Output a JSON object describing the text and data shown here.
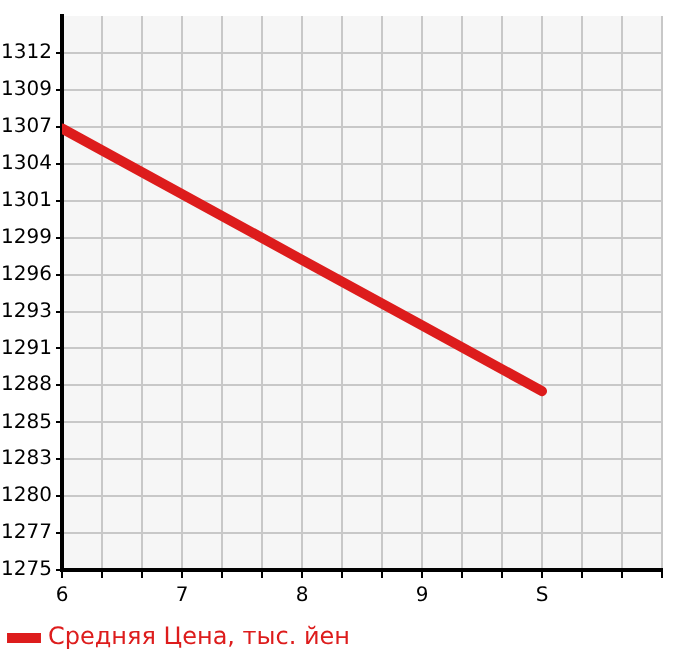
{
  "chart_data": {
    "type": "line",
    "x": [
      6,
      7,
      8,
      9,
      10
    ],
    "series": [
      {
        "name": "Средняя Цена, тыс. йен",
        "color": "#dd1c1c",
        "values": [
          1306.4,
          1301.7,
          1297.0,
          1292.3,
          1287.6
        ]
      }
    ],
    "xlim": [
      6,
      11
    ],
    "xticks": [
      6,
      {
        "value": 6.33,
        "label": null
      },
      {
        "value": 6.67,
        "label": null
      },
      7,
      {
        "value": 7.33,
        "label": null
      },
      {
        "value": 7.67,
        "label": null
      },
      8,
      {
        "value": 8.33,
        "label": null
      },
      {
        "value": 8.67,
        "label": null
      },
      9,
      {
        "value": 9.33,
        "label": null
      },
      {
        "value": 9.67,
        "label": null
      },
      {
        "value": 10,
        "label": "S"
      },
      {
        "value": 10.33,
        "label": null
      },
      {
        "value": 10.67,
        "label": null
      },
      {
        "value": 11,
        "label": null
      }
    ],
    "ylim": [
      1274.8,
      1314.45
    ],
    "yticks": [
      {
        "value": 1274.8,
        "label": "1275"
      },
      {
        "value": 1277.44,
        "label": "1277"
      },
      {
        "value": 1280.09,
        "label": "1280"
      },
      {
        "value": 1282.73,
        "label": "1283"
      },
      {
        "value": 1285.37,
        "label": "1285"
      },
      {
        "value": 1288.02,
        "label": "1288"
      },
      {
        "value": 1290.66,
        "label": "1291"
      },
      {
        "value": 1293.3,
        "label": "1293"
      },
      {
        "value": 1295.94,
        "label": "1296"
      },
      {
        "value": 1298.59,
        "label": "1299"
      },
      {
        "value": 1301.23,
        "label": "1301"
      },
      {
        "value": 1303.87,
        "label": "1304"
      },
      {
        "value": 1306.52,
        "label": "1307"
      },
      {
        "value": 1309.16,
        "label": "1309"
      },
      {
        "value": 1311.8,
        "label": "1312"
      }
    ],
    "grid": true,
    "legend": "bottom left",
    "marker": "none",
    "line_style": "solid"
  }
}
